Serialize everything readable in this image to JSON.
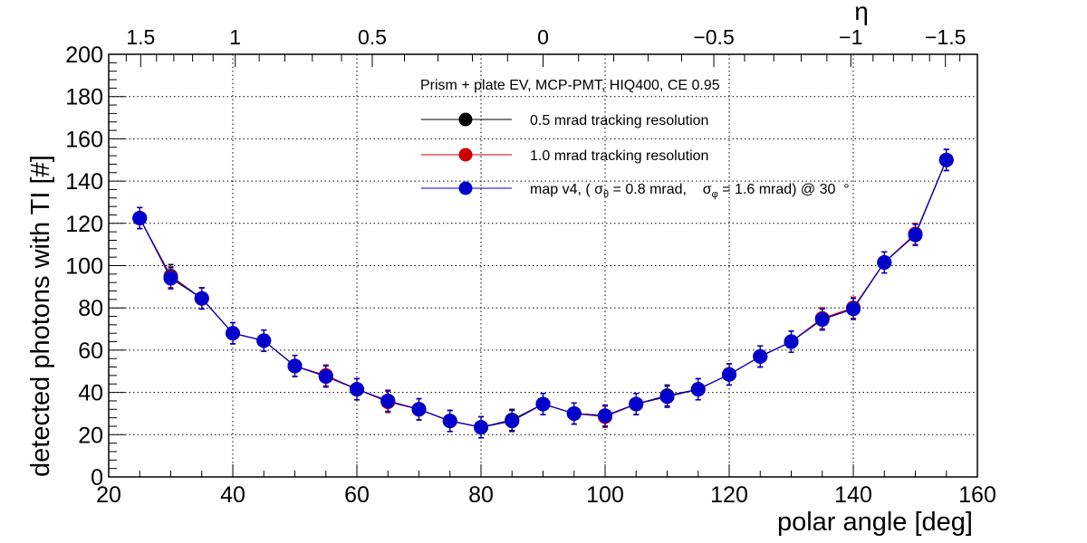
{
  "chart_data": {
    "type": "line",
    "title": "",
    "xlabel": "polar angle [deg]",
    "ylabel": "detected photons with TI [#]",
    "x2label": "η",
    "xlim": [
      20,
      160
    ],
    "ylim": [
      0,
      200
    ],
    "grid": true,
    "x_ticks": [
      20,
      40,
      60,
      80,
      100,
      120,
      140,
      160
    ],
    "y_ticks": [
      0,
      20,
      40,
      60,
      80,
      100,
      120,
      140,
      160,
      180,
      200
    ],
    "eta_ticks": [
      {
        "label": "1.5",
        "eta": 1.5
      },
      {
        "label": "1",
        "eta": 1.0
      },
      {
        "label": "0.5",
        "eta": 0.5
      },
      {
        "label": "0",
        "eta": 0.0
      },
      {
        "label": "−0.5",
        "eta": -0.5
      },
      {
        "label": "−1",
        "eta": -1.0
      },
      {
        "label": "−1.5",
        "eta": -1.5
      }
    ],
    "legend": {
      "position": "top-center",
      "header": "Prism + plate EV, MCP-PMT, HIQ400, CE 0.95",
      "entries": [
        {
          "label": "0.5 mrad tracking resolution",
          "color": "#000000"
        },
        {
          "label": "1.0 mrad tracking resolution",
          "color": "#cc0000"
        },
        {
          "label_parts": [
            "map v4, ( σ",
            "θ",
            " = 0.8 mrad,    σ",
            "φ",
            " = 1.6 mrad) @ 30  °"
          ],
          "color": "#0000cc"
        }
      ]
    },
    "x": [
      25,
      30,
      35,
      40,
      45,
      50,
      55,
      60,
      65,
      70,
      75,
      80,
      85,
      90,
      95,
      100,
      105,
      110,
      115,
      120,
      125,
      130,
      135,
      140,
      145,
      150,
      155
    ],
    "series": [
      {
        "name": "0.5 mrad tracking resolution",
        "color": "#000000",
        "values": [
          122.5,
          95,
          84.5,
          68,
          64.5,
          52.5,
          48,
          41.5,
          36,
          32,
          26.5,
          23.5,
          27,
          34.5,
          30,
          29,
          34.5,
          38.5,
          41.5,
          48.5,
          57,
          64,
          75,
          80,
          101.5,
          115,
          150
        ],
        "errors": [
          5,
          5.5,
          5,
          5,
          5,
          5,
          5,
          5,
          5,
          5,
          5,
          5,
          5,
          5,
          5,
          5,
          5,
          5,
          5,
          5,
          5,
          5,
          5,
          5,
          5,
          5,
          5
        ]
      },
      {
        "name": "1.0 mrad tracking resolution",
        "color": "#cc0000",
        "values": [
          122.5,
          94.5,
          84.5,
          68,
          64.5,
          52.5,
          48,
          41.5,
          35.5,
          32,
          26.5,
          23.5,
          26.5,
          34.5,
          30,
          28.5,
          34.5,
          38,
          41.5,
          48.5,
          57,
          64,
          75,
          80,
          101.5,
          115,
          150
        ],
        "errors": [
          5,
          5,
          5,
          5,
          5,
          5,
          5,
          5,
          5,
          5,
          5,
          5,
          5,
          5,
          5,
          5,
          5,
          5,
          5,
          5,
          5,
          5,
          5,
          5,
          5,
          5,
          5
        ]
      },
      {
        "name": "map v4",
        "color": "#0000cc",
        "values": [
          122.5,
          94,
          84.5,
          68,
          64.5,
          52.5,
          47.5,
          41.5,
          36,
          32,
          26.5,
          23.5,
          26.5,
          34.5,
          30,
          29,
          34.5,
          38,
          41.5,
          48.5,
          57,
          64,
          74.5,
          79.5,
          101.5,
          114.5,
          150
        ],
        "errors": [
          5,
          5,
          5,
          5,
          5,
          5,
          5,
          5,
          5,
          5,
          5,
          5,
          5,
          5,
          5,
          5,
          5,
          5,
          5,
          5,
          5,
          5,
          5,
          5,
          5,
          5,
          5
        ]
      }
    ]
  }
}
